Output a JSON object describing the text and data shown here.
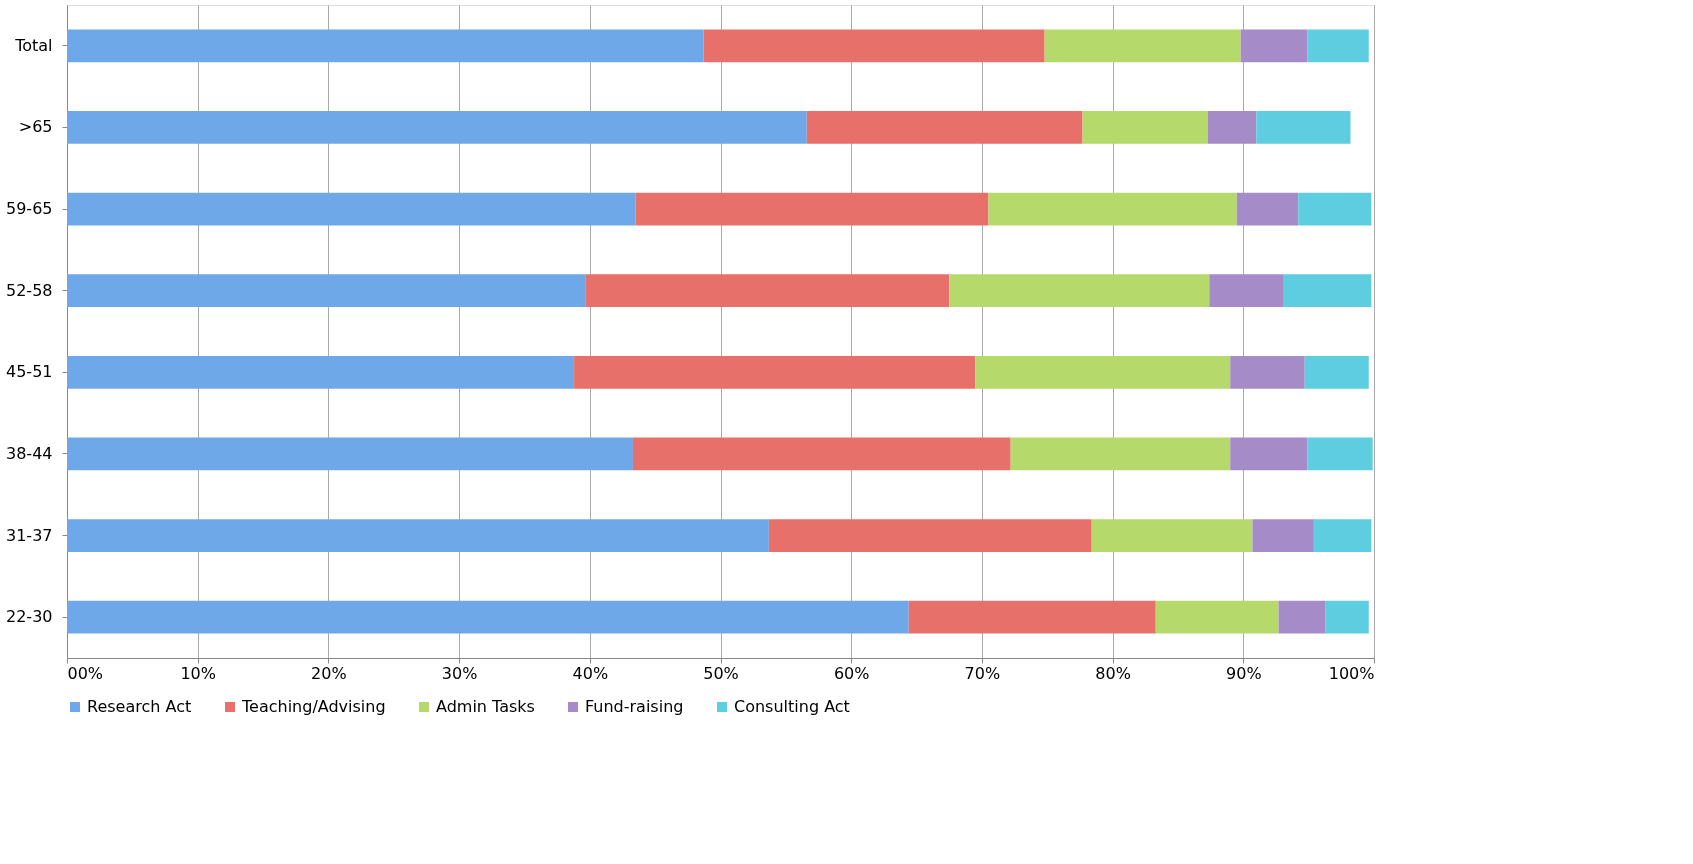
{
  "chart_data": {
    "type": "bar",
    "orientation": "horizontal",
    "stacked": true,
    "categories": [
      "Total",
      ">65",
      "59-65",
      "52-58",
      "45-51",
      "38-44",
      "31-37",
      "22-30"
    ],
    "series": [
      {
        "name": "Research Act",
        "color": "#6fa8e8",
        "values": [
          48.7,
          56.6,
          43.5,
          39.7,
          38.8,
          43.3,
          53.7,
          64.4
        ]
      },
      {
        "name": "Teaching/Advising",
        "color": "#e8706a",
        "values": [
          26.1,
          21.1,
          27.0,
          27.8,
          30.7,
          28.9,
          24.7,
          18.9
        ]
      },
      {
        "name": "Admin Tasks",
        "color": "#b5d96a",
        "values": [
          15.0,
          9.6,
          19.0,
          19.9,
          19.5,
          16.8,
          12.3,
          9.4
        ]
      },
      {
        "name": "Fund-raising",
        "color": "#a58cc8",
        "values": [
          5.1,
          3.7,
          4.7,
          5.7,
          5.7,
          5.9,
          4.7,
          3.6
        ]
      },
      {
        "name": "Consulting Act",
        "color": "#5fcde0",
        "values": [
          4.7,
          7.2,
          5.6,
          6.7,
          4.9,
          5.0,
          4.4,
          3.3
        ]
      }
    ],
    "xlim": [
      0,
      100
    ],
    "xticks": [
      {
        "value": 0,
        "label": "00%"
      },
      {
        "value": 10,
        "label": "10%"
      },
      {
        "value": 20,
        "label": "20%"
      },
      {
        "value": 30,
        "label": "30%"
      },
      {
        "value": 40,
        "label": "40%"
      },
      {
        "value": 50,
        "label": "50%"
      },
      {
        "value": 60,
        "label": "60%"
      },
      {
        "value": 70,
        "label": "70%"
      },
      {
        "value": 80,
        "label": "80%"
      },
      {
        "value": 90,
        "label": "90%"
      },
      {
        "value": 100,
        "label": "100%"
      }
    ],
    "grid": "x",
    "legend": "bottom"
  }
}
